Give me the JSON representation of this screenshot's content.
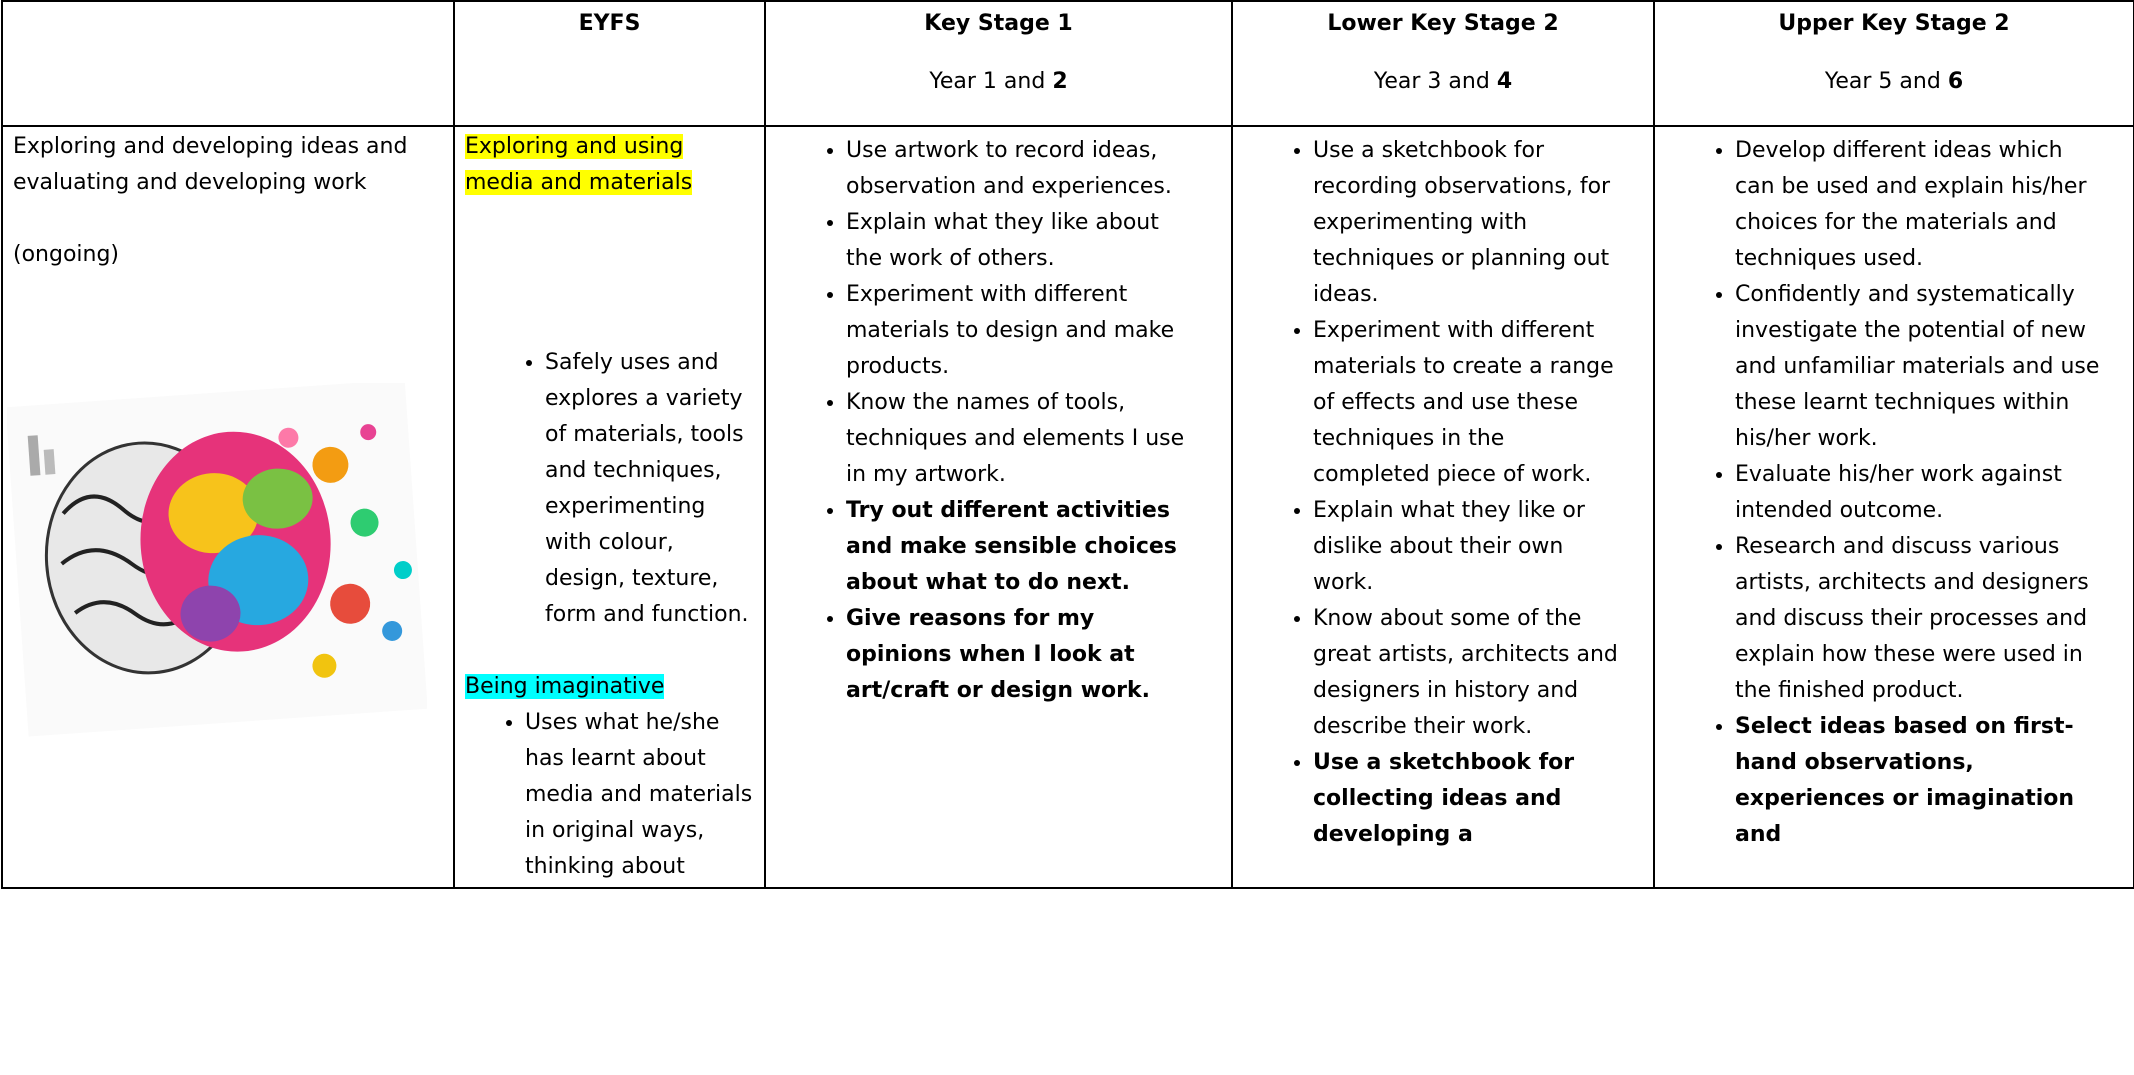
{
  "header": {
    "columns": [
      {
        "title": "EYFS"
      },
      {
        "title": "Key Stage 1",
        "year": "Year 1 and",
        "year_bold": "2"
      },
      {
        "title": "Lower Key Stage 2",
        "year": "Year 3 and",
        "year_bold": "4"
      },
      {
        "title": "Upper Key Stage 2",
        "year": "Year 5 and",
        "year_bold": "6"
      }
    ]
  },
  "row": {
    "label": "Exploring and developing ideas and evaluating and developing work",
    "note": "(ongoing)",
    "eyfs": [
      {
        "heading": "Exploring and using media and materials",
        "highlight": "#ffff00",
        "bullets": [
          "Safely uses and explores a variety of materials, tools and techniques, experimenting with colour, design, texture, form and function."
        ]
      },
      {
        "heading": "Being imaginative",
        "highlight": "#00ffff",
        "bullets": [
          "Uses what he/she has learnt about media and materials in original ways, thinking about"
        ]
      }
    ],
    "stages": [
      [
        {
          "text": "Use artwork to record ideas, observation and experiences.",
          "bold": false
        },
        {
          "text": "Explain what they like about the work of others.",
          "bold": false
        },
        {
          "text": "Experiment with different materials to design and make products.",
          "bold": false
        },
        {
          "text": "Know the names of tools, techniques and elements I use in my artwork.",
          "bold": false
        },
        {
          "text": "Try out different activities and make sensible choices about what to do next.",
          "bold": true
        },
        {
          "text": "Give reasons for my opinions when I look at art/craft or design work.",
          "bold": true
        }
      ],
      [
        {
          "text": "Use a sketchbook for recording observations, for experimenting with techniques or planning out ideas.",
          "bold": false
        },
        {
          "text": "Experiment with different materials to create a range of effects and use these techniques in the completed piece of work.",
          "bold": false
        },
        {
          "text": "Explain what they like or dislike about their own work.",
          "bold": false
        },
        {
          "text": "Know about some of the great artists, architects and designers in history and describe their work.",
          "bold": false
        },
        {
          "text": "Use a sketchbook for collecting ideas and developing a",
          "bold": true
        }
      ],
      [
        {
          "text": "Develop different ideas which can be used and explain his/her choices for the materials and techniques used.",
          "bold": false
        },
        {
          "text": "Confidently and systematically investigate the potential of new and unfamiliar materials and use these learnt techniques within his/her work.",
          "bold": false
        },
        {
          "text": "Evaluate his/her work against intended outcome.",
          "bold": false
        },
        {
          "text": "Research and discuss various artists, architects and designers and discuss their processes and explain how these were used in the finished product.",
          "bold": false
        },
        {
          "text": "Select ideas based on first-hand observations, experiences or imagination and",
          "bold": true
        }
      ]
    ]
  }
}
